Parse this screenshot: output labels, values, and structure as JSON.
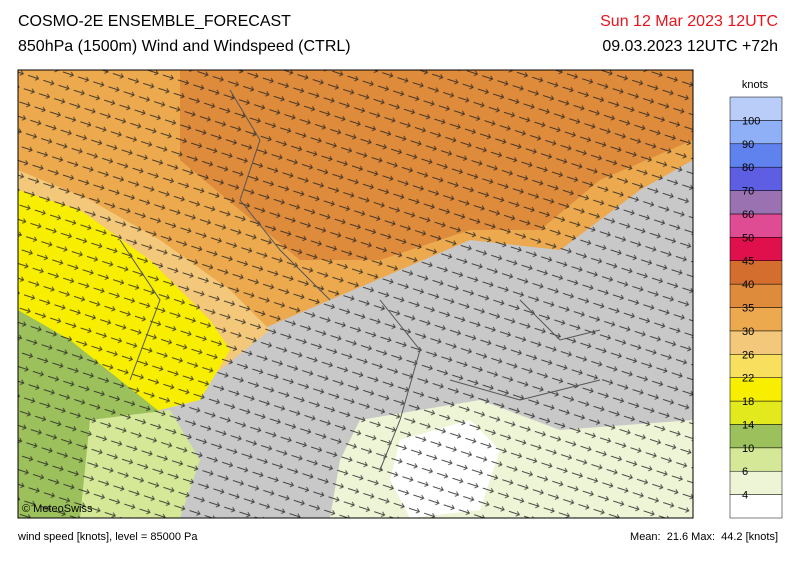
{
  "header": {
    "title": "COSMO-2E ENSEMBLE_FORECAST",
    "subtitle": "850hPa (1500m) Wind and Windspeed (CTRL)",
    "valid": "Sun 12 Mar 2023 12UTC",
    "run": "09.03.2023 12UTC +72h"
  },
  "legend": {
    "unit": "knots",
    "ticks": [
      4,
      6,
      10,
      14,
      18,
      22,
      26,
      30,
      35,
      40,
      45,
      50,
      60,
      70,
      80,
      90,
      100
    ],
    "colors": [
      "#ffffff",
      "#eef5d6",
      "#d4e898",
      "#9cc05c",
      "#e2ea1e",
      "#f8ee00",
      "#f8df5e",
      "#f3c87a",
      "#eca94e",
      "#df8b3c",
      "#d46e2e",
      "#e0104c",
      "#df4c93",
      "#9a72b2",
      "#5e5ee2",
      "#5f82ef",
      "#8fb0f7",
      "#b9cdf8"
    ]
  },
  "map": {
    "copyright": "© MeteoSwiss"
  },
  "footer": {
    "left": "wind speed [knots], level = 85000 Pa",
    "stats": "Mean:  21.6 Max:  44.2 [knots]"
  }
}
